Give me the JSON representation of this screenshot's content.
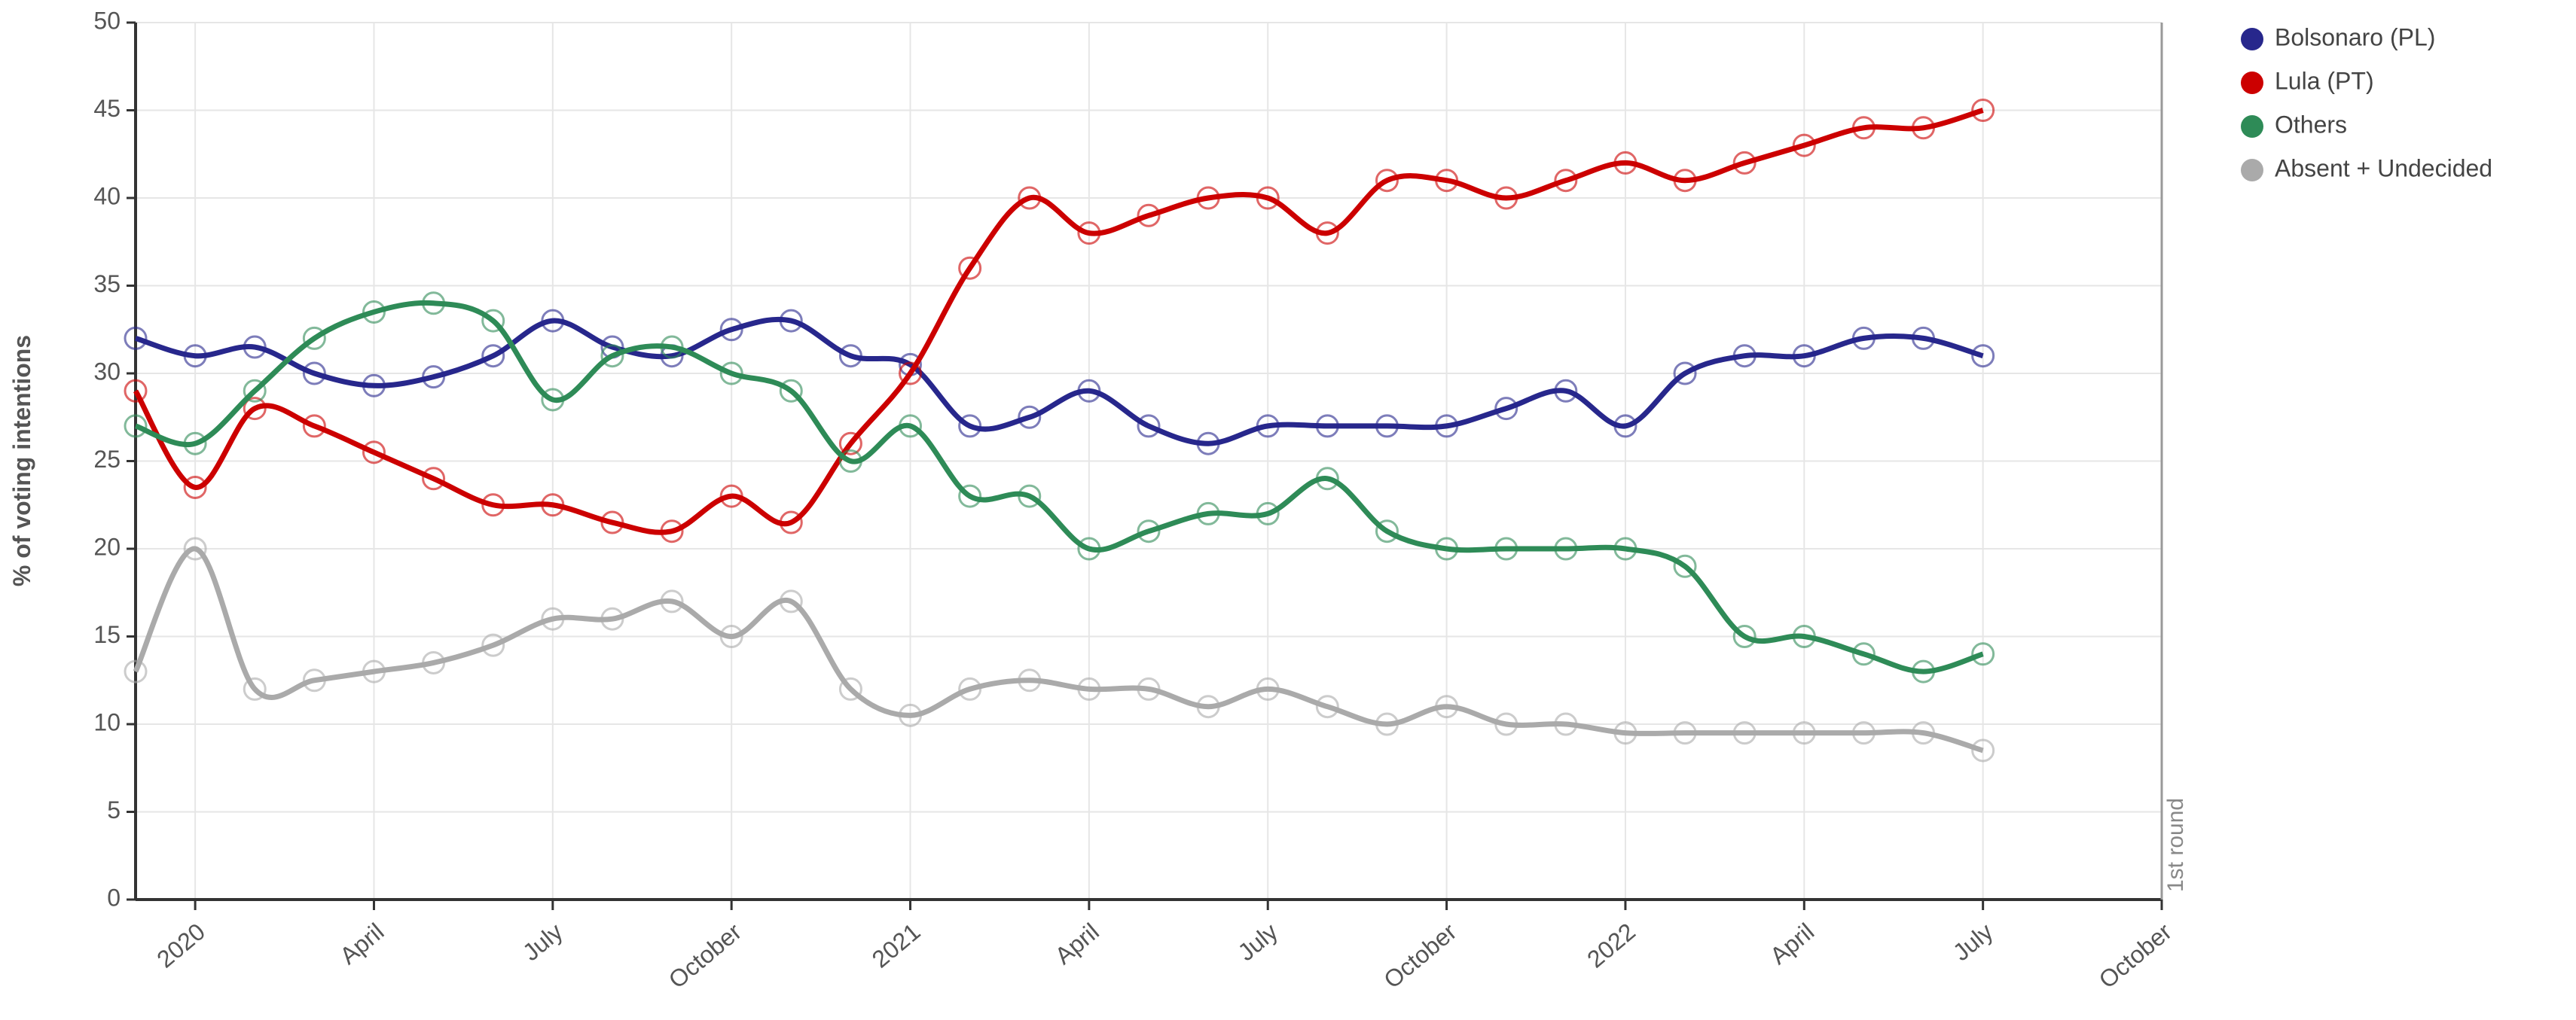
{
  "chart_data": {
    "type": "line",
    "y_label": "% of voting intentions",
    "annotation": "1st round",
    "x": [
      "2019-12",
      "2020-01",
      "2020-02",
      "2020-03",
      "2020-04",
      "2020-05",
      "2020-06",
      "2020-07",
      "2020-08",
      "2020-09",
      "2020-10",
      "2020-11",
      "2020-12",
      "2021-01",
      "2021-02",
      "2021-03",
      "2021-04",
      "2021-05",
      "2021-06",
      "2021-07",
      "2021-08",
      "2021-09",
      "2021-10",
      "2021-11",
      "2021-12",
      "2022-01",
      "2022-02",
      "2022-03",
      "2022-04",
      "2022-05",
      "2022-06",
      "2022-07"
    ],
    "series": [
      {
        "name": "Bolsonaro (PL)",
        "color": "#27278c",
        "values": [
          32,
          31,
          31.5,
          30,
          29.3,
          29.8,
          31,
          33,
          31.5,
          31,
          32.5,
          33,
          31,
          30.5,
          27,
          27.5,
          29,
          27,
          26,
          27,
          27,
          27,
          27,
          28,
          29,
          27,
          30,
          31,
          31,
          32,
          32,
          31
        ]
      },
      {
        "name": "Lula (PT)",
        "color": "#cc0000",
        "values": [
          29,
          23.5,
          28,
          27,
          25.5,
          24,
          22.5,
          22.5,
          21.5,
          21,
          23,
          21.5,
          26,
          30,
          36,
          40,
          38,
          39,
          40,
          40,
          38,
          41,
          41,
          40,
          41,
          42,
          41,
          42,
          43,
          44,
          44,
          45
        ]
      },
      {
        "name": "Others",
        "color": "#2e8b57",
        "values": [
          27,
          26,
          29,
          32,
          33.5,
          34,
          33,
          28.5,
          31,
          31.5,
          30,
          29,
          25,
          27,
          23,
          23,
          20,
          21,
          22,
          22,
          24,
          21,
          20,
          20,
          20,
          20,
          19,
          15,
          15,
          14,
          13,
          14
        ]
      },
      {
        "name": "Absent + Undecided",
        "color": "#aaaaaa",
        "values": [
          13,
          20,
          12,
          12.5,
          13,
          13.5,
          14.5,
          16,
          16,
          17,
          15,
          17,
          12,
          10.5,
          12,
          12.5,
          12,
          12,
          11,
          12,
          11,
          10,
          11,
          10,
          10,
          9.5,
          9.5,
          9.5,
          9.5,
          9.5,
          9.5,
          8.5
        ]
      }
    ],
    "xlim": [
      "2019-12",
      "2022-10"
    ],
    "xticks": [
      {
        "value": "2020-01",
        "label": "2020"
      },
      {
        "value": "2020-04",
        "label": "April"
      },
      {
        "value": "2020-07",
        "label": "July"
      },
      {
        "value": "2020-10",
        "label": "October"
      },
      {
        "value": "2021-01",
        "label": "2021"
      },
      {
        "value": "2021-04",
        "label": "April"
      },
      {
        "value": "2021-07",
        "label": "July"
      },
      {
        "value": "2021-10",
        "label": "October"
      },
      {
        "value": "2022-01",
        "label": "2022"
      },
      {
        "value": "2022-04",
        "label": "April"
      },
      {
        "value": "2022-07",
        "label": "July"
      },
      {
        "value": "2022-10",
        "label": "October"
      }
    ],
    "ylim": [
      0,
      50
    ],
    "yticks": [
      0,
      5,
      10,
      15,
      20,
      25,
      30,
      35,
      40,
      45,
      50
    ],
    "grid": true,
    "legend": "top-right"
  }
}
